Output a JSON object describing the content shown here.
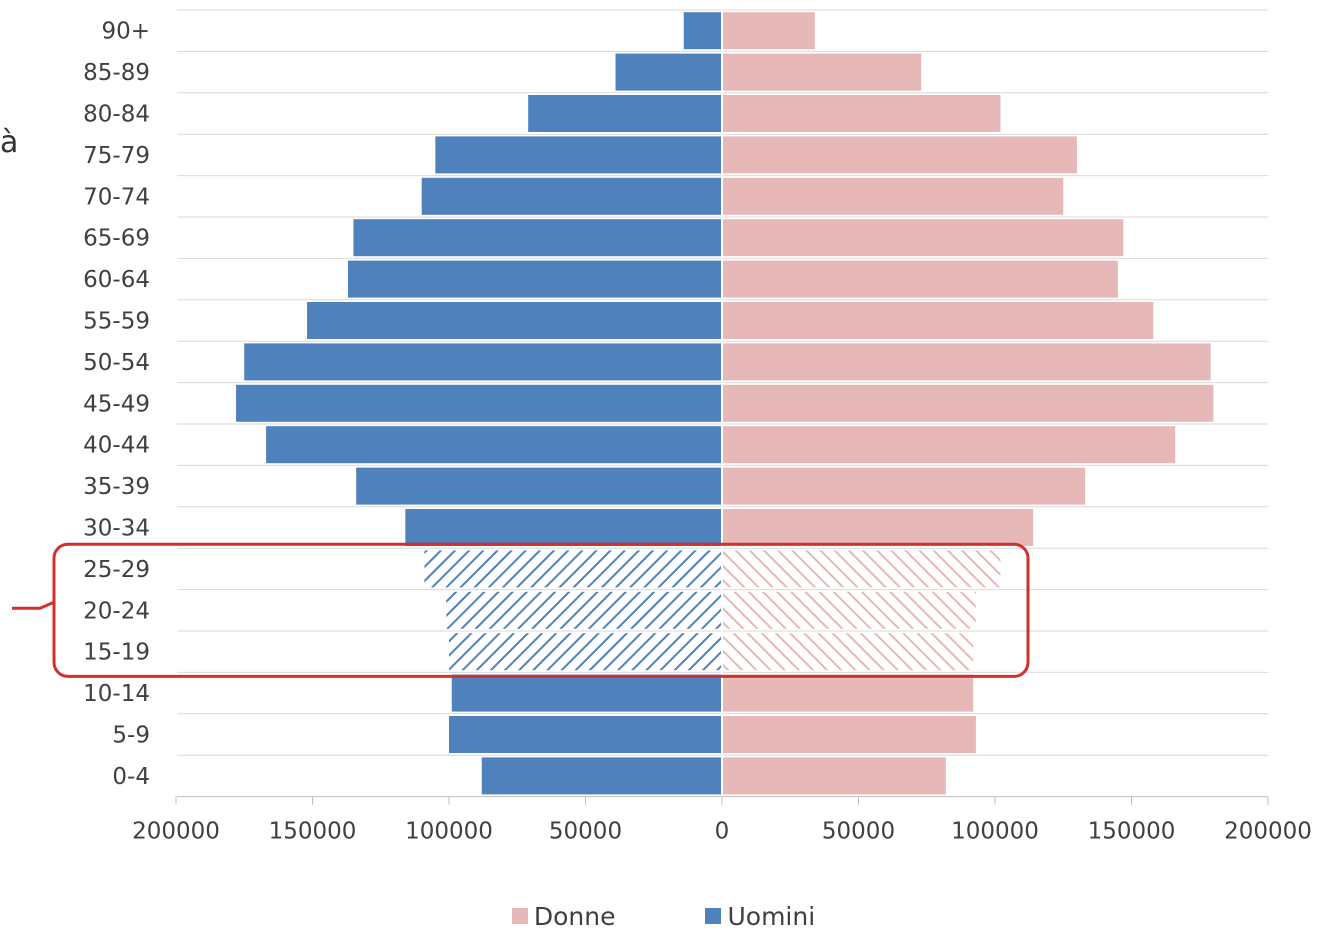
{
  "side_text": "à",
  "chart_data": {
    "type": "bar",
    "orientation": "horizontal",
    "layout": "population-pyramid",
    "categories": [
      "90+",
      "85-89",
      "80-84",
      "75-79",
      "70-74",
      "65-69",
      "60-64",
      "55-59",
      "50-54",
      "45-49",
      "40-44",
      "35-39",
      "30-34",
      "25-29",
      "20-24",
      "15-19",
      "10-14",
      "5-9",
      "0-4"
    ],
    "series": [
      {
        "name": "Donne",
        "side": "right",
        "color": "#e6b8b7",
        "values": [
          34000,
          73000,
          102000,
          130000,
          125000,
          147000,
          145000,
          158000,
          179000,
          180000,
          166000,
          133000,
          114000,
          102000,
          93000,
          92000,
          92000,
          93000,
          82000
        ]
      },
      {
        "name": "Uomini",
        "side": "left",
        "color": "#4f81bd",
        "values": [
          14000,
          39000,
          71000,
          105000,
          110000,
          135000,
          137000,
          152000,
          175000,
          178000,
          167000,
          134000,
          116000,
          109000,
          101000,
          100000,
          99000,
          100000,
          88000
        ]
      }
    ],
    "x_ticks": [
      "200000",
      "150000",
      "100000",
      "50000",
      "0",
      "50000",
      "100000",
      "150000",
      "200000"
    ],
    "xlim": [
      -200000,
      200000
    ],
    "highlighted_categories": [
      "25-29",
      "20-24",
      "15-19"
    ],
    "highlight_style": "hatched",
    "highlight_box_color": "#d0312d",
    "gridlines": "horizontal",
    "legend": {
      "position": "bottom",
      "entries": [
        "Donne",
        "Uomini"
      ]
    }
  }
}
